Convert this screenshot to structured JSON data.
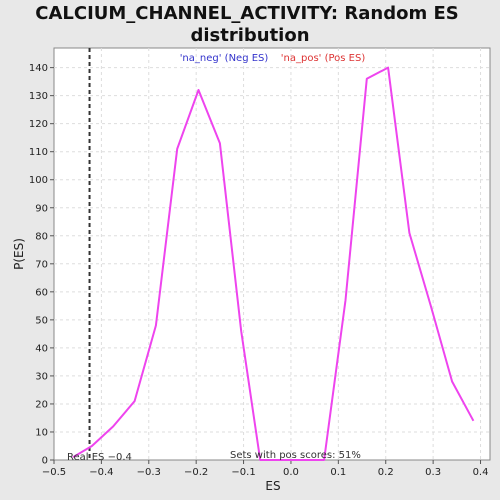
{
  "chart_data": {
    "type": "line",
    "title_line1": "CALCIUM_CHANNEL_ACTIVITY: Random ES",
    "title_line2": "distribution",
    "xlabel": "ES",
    "ylabel": "P(ES)",
    "xlim": [
      -0.5,
      0.42
    ],
    "ylim": [
      0,
      147
    ],
    "xticks": [
      -0.5,
      -0.4,
      -0.3,
      -0.2,
      -0.1,
      0.0,
      0.1,
      0.2,
      0.3,
      0.4
    ],
    "xtick_labels": [
      "−0.5",
      "−0.4",
      "−0.3",
      "−0.2",
      "−0.1",
      "0.0",
      "0.1",
      "0.2",
      "0.3",
      "0.4"
    ],
    "yticks": [
      0,
      10,
      20,
      30,
      40,
      50,
      60,
      70,
      80,
      90,
      100,
      110,
      120,
      130,
      140
    ],
    "grid": true,
    "legend": {
      "neg_label": "'na_neg' (Neg ES)",
      "pos_label": "'na_pos' (Pos ES)",
      "neg_color": "#3333cc",
      "pos_color": "#dd3333",
      "placement": "top-center"
    },
    "series": [
      {
        "color": "#ee44ee",
        "x": [
          -0.46,
          -0.42,
          -0.375,
          -0.33,
          -0.285,
          -0.24,
          -0.195,
          -0.15,
          -0.105,
          -0.065,
          -0.02,
          0.025,
          0.07,
          0.115,
          0.16,
          0.205,
          0.25,
          0.295,
          0.34,
          0.385
        ],
        "y": [
          1,
          5,
          12,
          21,
          48,
          111,
          132,
          113,
          46,
          0,
          0,
          0,
          0,
          57,
          136,
          140,
          81,
          55,
          28,
          14
        ]
      }
    ],
    "real_es": {
      "x": -0.425,
      "label": "Real ES −0.4",
      "color": "#333333"
    },
    "annotation": "Sets with pos scores: 51%"
  }
}
